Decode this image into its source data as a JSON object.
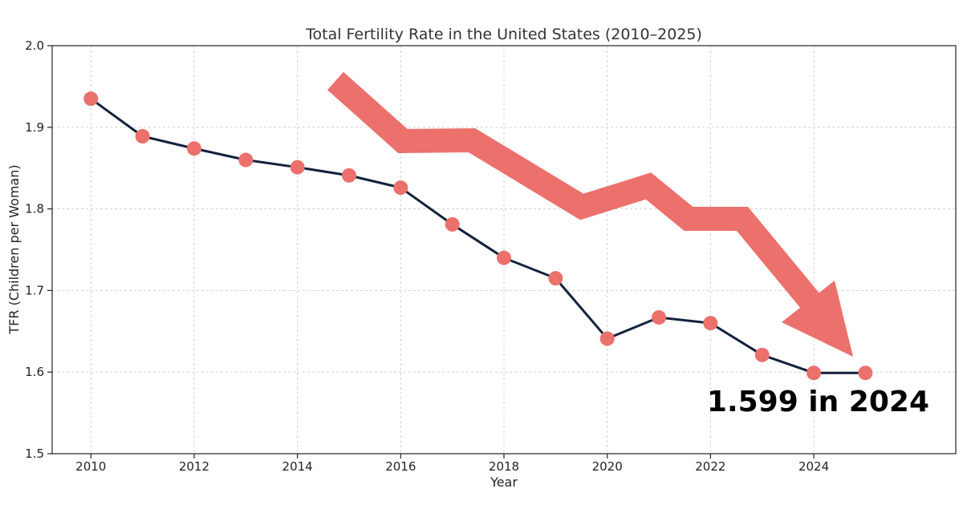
{
  "chart_data": {
    "type": "line",
    "title": "Total Fertility Rate in the United States (2010–2025)",
    "xlabel": "Year",
    "ylabel": "TFR (Children per Woman)",
    "x": [
      2010,
      2011,
      2012,
      2013,
      2014,
      2015,
      2016,
      2017,
      2018,
      2019,
      2020,
      2021,
      2022,
      2023,
      2024,
      2025
    ],
    "series": [
      {
        "values": [
          1.935,
          1.889,
          1.874,
          1.86,
          1.851,
          1.841,
          1.826,
          1.781,
          1.74,
          1.715,
          1.641,
          1.667,
          1.66,
          1.621,
          1.599,
          1.599
        ]
      }
    ],
    "xlim": [
      2009.25,
      2026.75
    ],
    "ylim": [
      1.5,
      2.0
    ],
    "xticks": [
      "2010",
      "2012",
      "2014",
      "2016",
      "2018",
      "2020",
      "2022",
      "2024"
    ],
    "yticks": [
      "1.5",
      "1.6",
      "1.7",
      "1.8",
      "1.9",
      "2.0"
    ],
    "grid": true,
    "annotation": "1.599 in 2024",
    "colors": {
      "line": "#13223c",
      "marker": "#ec706c",
      "arrow": "#ec706c",
      "grid": "#cccccc"
    }
  }
}
